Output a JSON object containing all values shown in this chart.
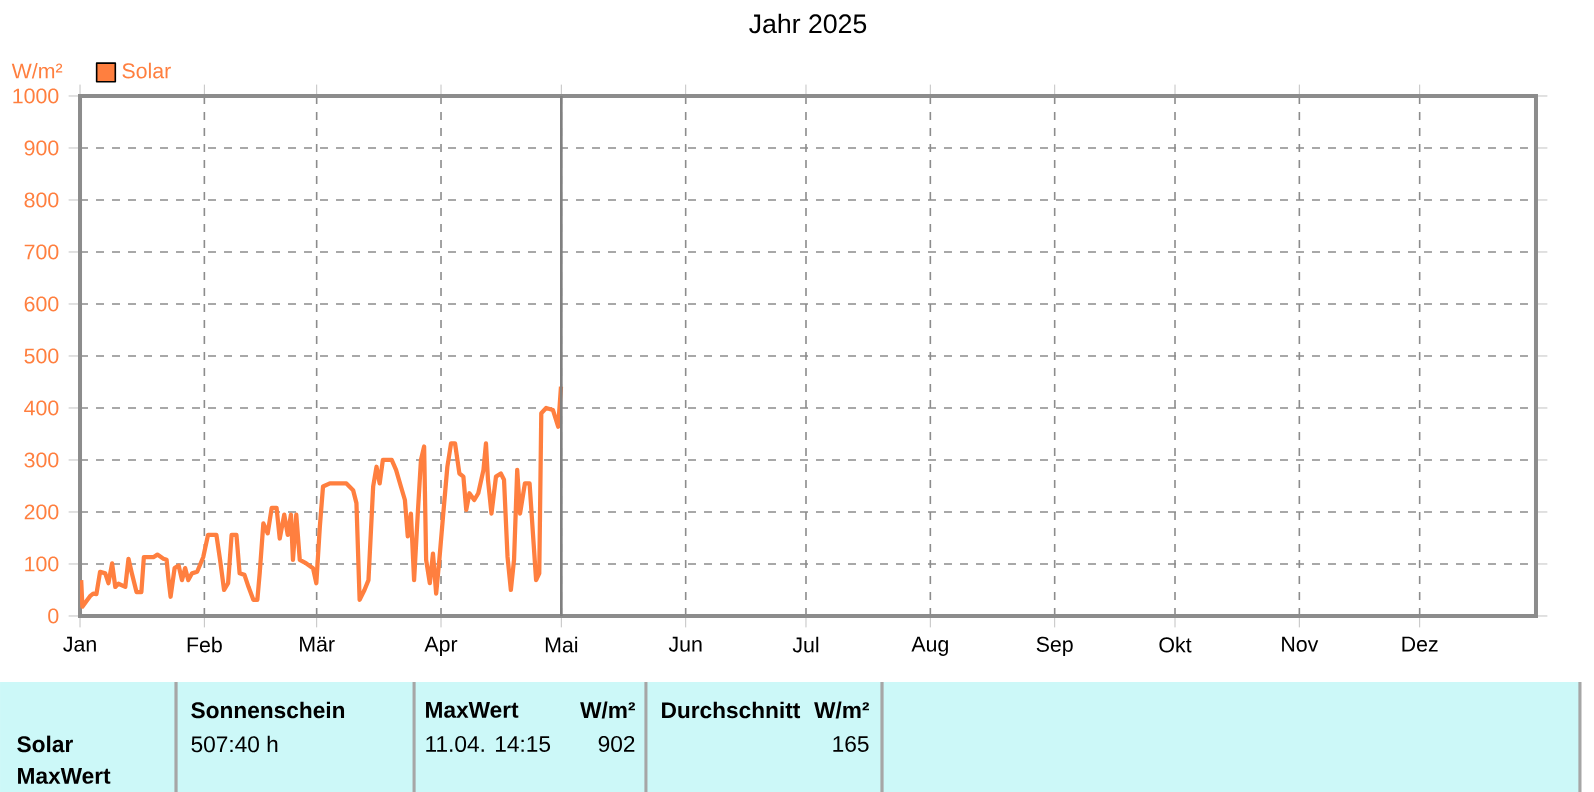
{
  "chart_data": {
    "type": "line",
    "title": "Jahr 2025",
    "ylabel": "W/m²",
    "xlim": [
      "2025-01-01",
      "2025-12-30"
    ],
    "ylim": [
      0,
      1000
    ],
    "xticks": [
      {
        "value": "2025-01-01",
        "label": "Jan"
      },
      {
        "value": "2025-02-01",
        "label": "Feb"
      },
      {
        "value": "2025-03-01",
        "label": "Mär"
      },
      {
        "value": "2025-04-01",
        "label": "Apr"
      },
      {
        "value": "2025-05-01",
        "label": "Mai"
      },
      {
        "value": "2025-06-01",
        "label": "Jun"
      },
      {
        "value": "2025-07-01",
        "label": "Jul"
      },
      {
        "value": "2025-08-01",
        "label": "Aug"
      },
      {
        "value": "2025-09-01",
        "label": "Sep"
      },
      {
        "value": "2025-10-01",
        "label": "Okt"
      },
      {
        "value": "2025-11-01",
        "label": "Nov"
      },
      {
        "value": "2025-12-01",
        "label": "Dez"
      }
    ],
    "yticks": [
      0,
      100,
      200,
      300,
      400,
      500,
      600,
      700,
      800,
      900,
      1000
    ],
    "grid": true,
    "legend": "top left",
    "ref_lines": [
      {
        "axis": "x",
        "value": "2025-05-01",
        "color": "#808080"
      }
    ],
    "x": [
      "2025-01-01T07:00",
      "2025-01-01T14:00",
      "2025-01-03T12:00",
      "2025-01-04T07:00",
      "2025-01-05T02:00",
      "2025-01-06T00:00",
      "2025-01-07T07:00",
      "2025-01-08T02:00",
      "2025-01-09T00:00",
      "2025-01-09T19:00",
      "2025-01-10T14:00",
      "2025-01-12T07:00",
      "2025-01-13T02:00",
      "2025-01-13T22:00",
      "2025-01-15T02:00",
      "2025-01-16T07:00",
      "2025-01-16T22:00",
      "2025-01-19T07:00",
      "2025-01-20T07:00",
      "2025-01-21T19:00",
      "2025-01-22T14:00",
      "2025-01-23T02:00",
      "2025-01-23T14:00",
      "2025-01-24T14:00",
      "2025-01-25T14:00",
      "2025-01-26T10:00",
      "2025-01-27T05:00",
      "2025-01-28T00:00",
      "2025-01-28T22:00",
      "2025-01-30T05:00",
      "2025-01-31T17:00",
      "2025-02-01T22:00",
      "2025-02-04T00:00",
      "2025-02-04T22:00",
      "2025-02-05T22:00",
      "2025-02-06T22:00",
      "2025-02-07T19:00",
      "2025-02-09T00:00",
      "2025-02-09T19:00",
      "2025-02-11T00:00",
      "2025-02-12T00:00",
      "2025-02-13T05:00",
      "2025-02-14T05:00",
      "2025-02-14T19:00",
      "2025-02-15T17:00",
      "2025-02-16T19:00",
      "2025-02-17T19:00",
      "2025-02-19T00:00",
      "2025-02-19T19:00",
      "2025-02-20T22:00",
      "2025-02-21T19:00",
      "2025-02-22T14:00",
      "2025-02-23T02:00",
      "2025-02-23T22:00",
      "2025-02-24T19:00",
      "2025-02-26T10:00",
      "2025-02-28T02:00",
      "2025-02-28T22:00",
      "2025-03-01T19:00",
      "2025-03-02T14:00",
      "2025-03-04T07:00",
      "2025-03-08T10:00",
      "2025-03-10T02:00",
      "2025-03-10T22:00",
      "2025-03-11T17:00",
      "2025-03-12T22:00",
      "2025-03-13T22:00",
      "2025-03-15T02:00",
      "2025-03-15T22:00",
      "2025-03-16T17:00",
      "2025-03-17T12:00",
      "2025-03-19T17:00",
      "2025-03-20T19:00",
      "2025-03-22T00:00",
      "2025-03-23T00:00",
      "2025-03-23T17:00",
      "2025-03-24T12:00",
      "2025-03-25T07:00",
      "2025-03-26T05:00",
      "2025-03-27T00:00",
      "2025-03-27T19:00",
      "2025-03-28T07:00",
      "2025-03-29T05:00",
      "2025-03-30T00:00",
      "2025-03-30T19:00",
      "2025-03-31T14:00",
      "2025-04-01T12:00",
      "2025-04-02T14:00",
      "2025-04-03T12:00",
      "2025-04-04T12:00",
      "2025-04-05T14:00",
      "2025-04-06T14:00",
      "2025-04-07T07:00",
      "2025-04-08T02:00",
      "2025-04-09T07:00",
      "2025-04-10T07:00",
      "2025-04-11T14:00",
      "2025-04-12T05:00",
      "2025-04-12T17:00",
      "2025-04-13T14:00",
      "2025-04-14T17:00",
      "2025-04-15T22:00",
      "2025-04-16T17:00",
      "2025-04-17T14:00",
      "2025-04-18T10:00",
      "2025-04-19T05:00",
      "2025-04-20T00:00",
      "2025-04-20T17:00",
      "2025-04-21T22:00",
      "2025-04-23T02:00",
      "2025-04-23T22:00",
      "2025-04-24T17:00",
      "2025-04-25T12:00",
      "2025-04-26T00:00",
      "2025-04-27T05:00",
      "2025-04-28T22:00",
      "2025-04-30T05:00",
      "2025-04-30T22:00"
    ],
    "series": [
      {
        "name": "Solar",
        "color": "#ff7f3f",
        "values": [
          69,
          18,
          38,
          43,
          42,
          85,
          82,
          63,
          101,
          56,
          62,
          56,
          110,
          82,
          46,
          46,
          113,
          113,
          118,
          110,
          108,
          69,
          37,
          92,
          97,
          69,
          92,
          69,
          82,
          85,
          113,
          156,
          156,
          108,
          50,
          63,
          156,
          156,
          82,
          79,
          56,
          31,
          31,
          82,
          178,
          159,
          208,
          208,
          149,
          195,
          156,
          195,
          108,
          195,
          108,
          101,
          92,
          63,
          172,
          249,
          255,
          255,
          242,
          217,
          31,
          50,
          69,
          249,
          287,
          255,
          300,
          300,
          281,
          249,
          223,
          153,
          197,
          69,
          197,
          300,
          326,
          108,
          63,
          120,
          43,
          108,
          191,
          287,
          332,
          332,
          274,
          268,
          204,
          236,
          223,
          236,
          281,
          332,
          262,
          197,
          268,
          274,
          262,
          114,
          50,
          108,
          281,
          197,
          255,
          255,
          159,
          69,
          82,
          390,
          400,
          396,
          364,
          441
        ]
      }
    ],
    "annotations": [
      "Solar",
      "MaxWert",
      "Sonnenschein",
      "507:40 h",
      "MaxWert",
      "W/m²",
      "11.04.  14:15",
      "902",
      "Durchschnitt",
      "W/m²",
      "165"
    ]
  }
}
